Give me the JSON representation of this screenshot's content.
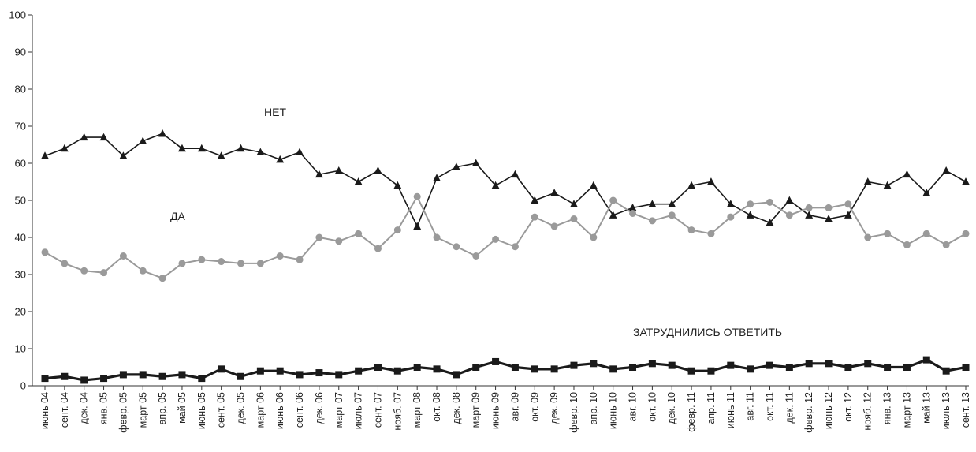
{
  "chart_data": {
    "type": "line",
    "ylim": [
      0,
      100
    ],
    "yticks": [
      0,
      10,
      20,
      30,
      40,
      50,
      60,
      70,
      80,
      90,
      100
    ],
    "grid": false,
    "legend": "none",
    "categories": [
      "июнь 04",
      "сент. 04",
      "дек. 04",
      "янв. 05",
      "февр. 05",
      "март 05",
      "апр. 05",
      "май 05",
      "июнь 05",
      "сент. 05",
      "дек. 05",
      "март 06",
      "июнь 06",
      "сент. 06",
      "дек. 06",
      "март 07",
      "июль 07",
      "сент. 07",
      "нояб. 07",
      "март 08",
      "окт. 08",
      "дек. 08",
      "март 09",
      "июнь 09",
      "авг. 09",
      "окт. 09",
      "дек. 09",
      "февр. 10",
      "апр. 10",
      "июнь 10",
      "авг. 10",
      "окт. 10",
      "дек. 10",
      "февр. 11",
      "апр. 11",
      "июнь 11",
      "авг. 11",
      "окт. 11",
      "дек. 11",
      "февр. 12",
      "июнь 12",
      "окт. 12",
      "нояб. 12",
      "янв. 13",
      "март 13",
      "май 13",
      "июль 13",
      "сент. 13"
    ],
    "series": [
      {
        "name": "НЕТ",
        "marker": "triangle",
        "color": "#1a1a1a",
        "values": [
          62,
          64,
          67,
          67,
          62,
          66,
          68,
          64,
          64,
          62,
          64,
          63,
          61,
          63,
          57,
          58,
          55,
          58,
          54,
          43,
          56,
          59,
          60,
          54,
          57,
          50,
          52,
          49,
          54,
          46,
          48,
          49,
          49,
          54,
          55,
          49,
          46,
          44,
          50,
          46,
          45,
          46,
          55,
          54,
          57,
          52,
          58,
          55
        ]
      },
      {
        "name": "ДА",
        "marker": "circle",
        "color": "#9a9a9a",
        "values": [
          36,
          33,
          31,
          30.5,
          35,
          31,
          29,
          33,
          34,
          33.5,
          33,
          33,
          35,
          34,
          40,
          39,
          41,
          37,
          42,
          51,
          40,
          37.5,
          35,
          39.5,
          37.5,
          45.5,
          43,
          45,
          40,
          50,
          46.5,
          44.5,
          46,
          42,
          41,
          45.5,
          49,
          49.5,
          46,
          48,
          48,
          49,
          40,
          41,
          38,
          41,
          38,
          41
        ]
      },
      {
        "name": "ЗАТРУДНИЛИСЬ ОТВЕТИТЬ",
        "marker": "square",
        "color": "#1a1a1a",
        "values": [
          2,
          2.5,
          1.5,
          2,
          3,
          3,
          2.5,
          3,
          2,
          4.5,
          2.5,
          4,
          4,
          3,
          3.5,
          3,
          4,
          5,
          4,
          5,
          4.5,
          3,
          5,
          6.5,
          5,
          4.5,
          4.5,
          5.5,
          6,
          4.5,
          5,
          6,
          5.5,
          4,
          4,
          5.5,
          4.5,
          5.5,
          5,
          6,
          6,
          5,
          6,
          5,
          5,
          7,
          4,
          5
        ]
      }
    ]
  }
}
